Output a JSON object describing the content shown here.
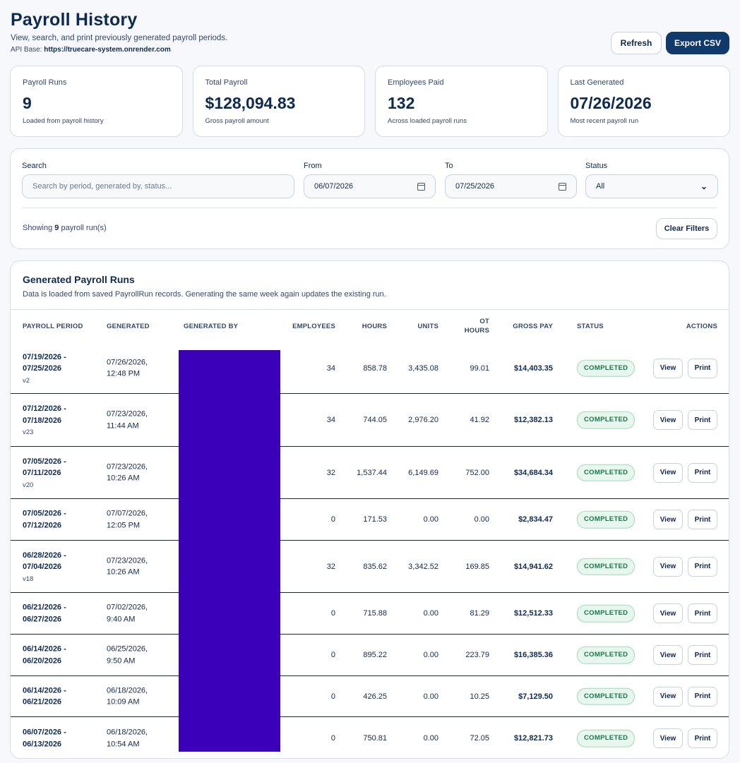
{
  "header": {
    "title": "Payroll History",
    "subtitle": "View, search, and print previously generated payroll periods.",
    "api_label": "API Base:",
    "api_url": "https://truecare-system.onrender.com",
    "refresh_label": "Refresh",
    "export_label": "Export CSV"
  },
  "stats": [
    {
      "label": "Payroll Runs",
      "value": "9",
      "sub": "Loaded from payroll history"
    },
    {
      "label": "Total Payroll",
      "value": "$128,094.83",
      "sub": "Gross payroll amount"
    },
    {
      "label": "Employees Paid",
      "value": "132",
      "sub": "Across loaded payroll runs"
    },
    {
      "label": "Last Generated",
      "value": "07/26/2026",
      "sub": "Most recent payroll run"
    }
  ],
  "filters": {
    "search_label": "Search",
    "search_placeholder": "Search by period, generated by, status...",
    "from_label": "From",
    "from_value": "06/07/2026",
    "to_label": "To",
    "to_value": "07/25/2026",
    "status_label": "Status",
    "status_value": "All",
    "showing_prefix": "Showing",
    "showing_count": "9",
    "showing_suffix": "payroll run(s)",
    "clear_label": "Clear Filters"
  },
  "table": {
    "title": "Generated Payroll Runs",
    "subtitle": "Data is loaded from saved PayrollRun records. Generating the same week again updates the existing run.",
    "columns": {
      "period": "PAYROLL PERIOD",
      "generated": "GENERATED",
      "generated_by": "GENERATED BY",
      "employees": "EMPLOYEES",
      "hours": "HOURS",
      "units": "UNITS",
      "ot_hours_1": "OT",
      "ot_hours_2": "HOURS",
      "gross": "GROSS PAY",
      "status": "STATUS",
      "actions": "ACTIONS"
    },
    "view_label": "View",
    "print_label": "Print",
    "rows": [
      {
        "p1": "07/19/2026 -",
        "p2": "07/25/2026",
        "ver": "v2",
        "g1": "07/26/2026,",
        "g2": "12:48 PM",
        "emp": "34",
        "hours": "858.78",
        "units": "3,435.08",
        "ot": "99.01",
        "gross": "$14,403.35",
        "status": "COMPLETED"
      },
      {
        "p1": "07/12/2026 -",
        "p2": "07/18/2026",
        "ver": "v23",
        "g1": "07/23/2026,",
        "g2": "11:44 AM",
        "emp": "34",
        "hours": "744.05",
        "units": "2,976.20",
        "ot": "41.92",
        "gross": "$12,382.13",
        "status": "COMPLETED"
      },
      {
        "p1": "07/05/2026 -",
        "p2": "07/11/2026",
        "ver": "v20",
        "g1": "07/23/2026,",
        "g2": "10:26 AM",
        "emp": "32",
        "hours": "1,537.44",
        "units": "6,149.69",
        "ot": "752.00",
        "gross": "$34,684.34",
        "status": "COMPLETED"
      },
      {
        "p1": "07/05/2026 -",
        "p2": "07/12/2026",
        "ver": "",
        "g1": "07/07/2026,",
        "g2": "12:05 PM",
        "emp": "0",
        "hours": "171.53",
        "units": "0.00",
        "ot": "0.00",
        "gross": "$2,834.47",
        "status": "COMPLETED"
      },
      {
        "p1": "06/28/2026 -",
        "p2": "07/04/2026",
        "ver": "v18",
        "g1": "07/23/2026,",
        "g2": "10:26 AM",
        "emp": "32",
        "hours": "835.62",
        "units": "3,342.52",
        "ot": "169.85",
        "gross": "$14,941.62",
        "status": "COMPLETED"
      },
      {
        "p1": "06/21/2026 -",
        "p2": "06/27/2026",
        "ver": "",
        "g1": "07/02/2026,",
        "g2": "9:40 AM",
        "emp": "0",
        "hours": "715.88",
        "units": "0.00",
        "ot": "81.29",
        "gross": "$12,512.33",
        "status": "COMPLETED"
      },
      {
        "p1": "06/14/2026 -",
        "p2": "06/20/2026",
        "ver": "",
        "g1": "06/25/2026,",
        "g2": "9:50 AM",
        "emp": "0",
        "hours": "895.22",
        "units": "0.00",
        "ot": "223.79",
        "gross": "$16,385.36",
        "status": "COMPLETED"
      },
      {
        "p1": "06/14/2026 -",
        "p2": "06/21/2026",
        "ver": "",
        "g1": "06/18/2026,",
        "g2": "10:09 AM",
        "emp": "0",
        "hours": "426.25",
        "units": "0.00",
        "ot": "10.25",
        "gross": "$7,129.50",
        "status": "COMPLETED"
      },
      {
        "p1": "06/07/2026 -",
        "p2": "06/13/2026",
        "ver": "",
        "g1": "06/18/2026,",
        "g2": "10:54 AM",
        "emp": "0",
        "hours": "750.81",
        "units": "0.00",
        "ot": "72.05",
        "gross": "$12,821.73",
        "status": "COMPLETED"
      }
    ]
  }
}
